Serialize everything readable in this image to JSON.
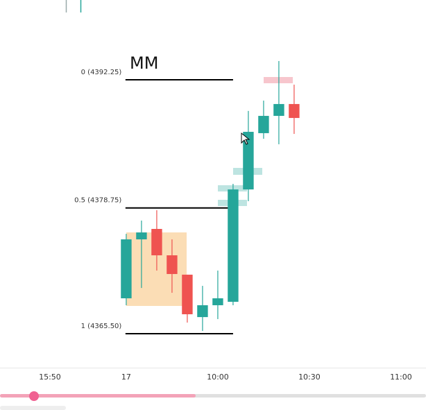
{
  "chart_data": {
    "type": "candlestick",
    "title": "MM",
    "x": [
      0,
      1,
      2,
      3,
      4,
      5,
      6,
      7,
      8,
      9,
      10,
      11
    ],
    "open": [
      4369.23,
      4375.44,
      4376.54,
      4373.76,
      4371.72,
      4367.25,
      4368.5,
      4368.86,
      4380.7,
      4386.63,
      4388.45,
      4389.7
    ],
    "high": [
      4376.02,
      4377.42,
      4378.51,
      4375.44,
      4371.72,
      4370.54,
      4372.15,
      4381.29,
      4388.97,
      4390.06,
      4394.23,
      4391.74
    ],
    "low": [
      4368.5,
      4370.32,
      4372.15,
      4369.81,
      4366.67,
      4365.79,
      4367.04,
      4368.5,
      4379.46,
      4386.04,
      4385.46,
      4386.55
    ],
    "close": [
      4375.44,
      4376.17,
      4373.76,
      4371.79,
      4367.55,
      4368.5,
      4369.23,
      4380.7,
      4386.77,
      4388.45,
      4389.7,
      4388.23
    ],
    "up_color": "#26a69a",
    "down_color": "#ef5350",
    "xlim": [
      -8.27,
      19.64
    ],
    "xticks": [
      {
        "value": -5,
        "label": "15:50"
      },
      {
        "value": 0,
        "label": "17"
      },
      {
        "value": 6,
        "label": "10:00"
      },
      {
        "value": 12,
        "label": "10:30"
      },
      {
        "value": 18,
        "label": "11:00"
      }
    ],
    "ylim": [
      4361.92,
      4400.66
    ],
    "levels": [
      {
        "value": 4392.25,
        "label": "0 (4392.25)"
      },
      {
        "value": 4378.75,
        "label": "0.5 (4378.75)"
      },
      {
        "value": 4365.5,
        "label": "1 (4365.50)"
      }
    ],
    "level_color": "#000000"
  }
}
